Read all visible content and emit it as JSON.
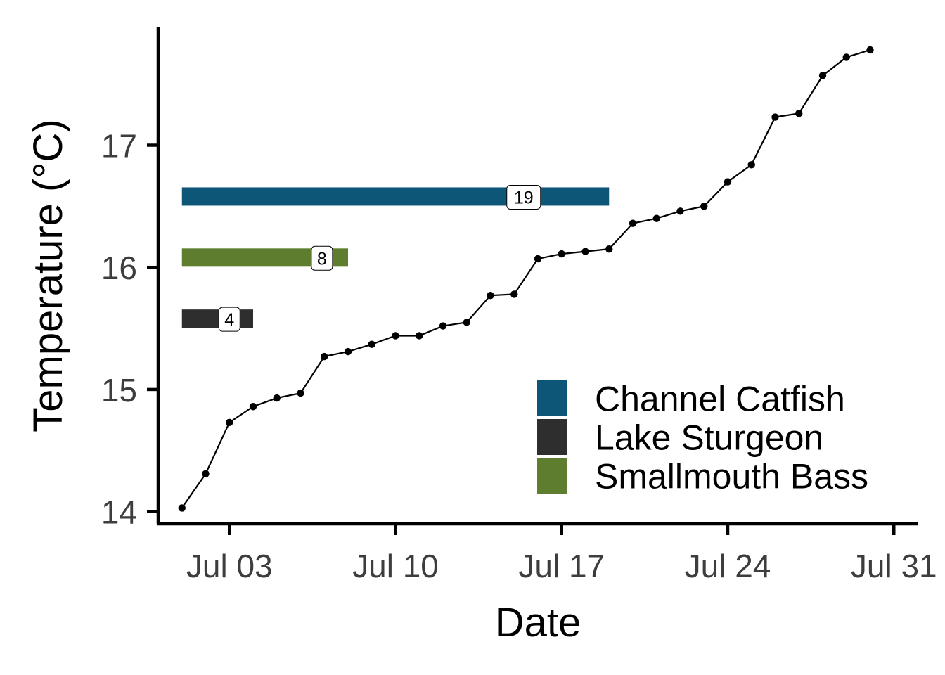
{
  "chart_data": {
    "type": "line",
    "xlabel": "Date",
    "ylabel": "Temperature (°C)",
    "x_axis": {
      "type": "date",
      "range": [
        "2023-06-30",
        "2023-08-01"
      ],
      "ticks": [
        {
          "date": "2023-07-03",
          "label": "Jul 03"
        },
        {
          "date": "2023-07-10",
          "label": "Jul 10"
        },
        {
          "date": "2023-07-17",
          "label": "Jul 17"
        },
        {
          "date": "2023-07-24",
          "label": "Jul 24"
        },
        {
          "date": "2023-07-31",
          "label": "Jul 31"
        }
      ]
    },
    "y_axis": {
      "range": [
        13.9,
        17.97
      ],
      "ticks": [
        14,
        15,
        16,
        17
      ]
    },
    "grid": false,
    "legend_position": "bottom-right",
    "series": [
      {
        "points": [
          {
            "x": "2023-07-01",
            "y": 14.03
          },
          {
            "x": "2023-07-02",
            "y": 14.31
          },
          {
            "x": "2023-07-03",
            "y": 14.73
          },
          {
            "x": "2023-07-04",
            "y": 14.86
          },
          {
            "x": "2023-07-05",
            "y": 14.93
          },
          {
            "x": "2023-07-06",
            "y": 14.97
          },
          {
            "x": "2023-07-07",
            "y": 15.27
          },
          {
            "x": "2023-07-08",
            "y": 15.31
          },
          {
            "x": "2023-07-09",
            "y": 15.37
          },
          {
            "x": "2023-07-10",
            "y": 15.44
          },
          {
            "x": "2023-07-11",
            "y": 15.44
          },
          {
            "x": "2023-07-12",
            "y": 15.52
          },
          {
            "x": "2023-07-13",
            "y": 15.55
          },
          {
            "x": "2023-07-14",
            "y": 15.77
          },
          {
            "x": "2023-07-15",
            "y": 15.78
          },
          {
            "x": "2023-07-16",
            "y": 16.07
          },
          {
            "x": "2023-07-17",
            "y": 16.11
          },
          {
            "x": "2023-07-18",
            "y": 16.13
          },
          {
            "x": "2023-07-19",
            "y": 16.15
          },
          {
            "x": "2023-07-20",
            "y": 16.36
          },
          {
            "x": "2023-07-21",
            "y": 16.4
          },
          {
            "x": "2023-07-22",
            "y": 16.46
          },
          {
            "x": "2023-07-23",
            "y": 16.5
          },
          {
            "x": "2023-07-24",
            "y": 16.7
          },
          {
            "x": "2023-07-25",
            "y": 16.84
          },
          {
            "x": "2023-07-26",
            "y": 17.23
          },
          {
            "x": "2023-07-27",
            "y": 17.26
          },
          {
            "x": "2023-07-28",
            "y": 17.57
          },
          {
            "x": "2023-07-29",
            "y": 17.72
          },
          {
            "x": "2023-07-30",
            "y": 17.78
          }
        ]
      }
    ],
    "bars": [
      {
        "name": "Channel Catfish",
        "start": "2023-07-01",
        "end": "2023-07-19",
        "y": 16.58,
        "label": "19",
        "label_x": "2023-07-15.4",
        "color": "#0d5677"
      },
      {
        "name": "Smallmouth Bass",
        "start": "2023-07-01",
        "end": "2023-07-08",
        "y": 16.08,
        "label": "8",
        "label_x": "2023-07-06.9",
        "color": "#5f7d2e"
      },
      {
        "name": "Lake Sturgeon",
        "start": "2023-07-01",
        "end": "2023-07-04",
        "y": 15.58,
        "label": "4",
        "label_x": "2023-07-03",
        "color": "#2e2e2e"
      }
    ],
    "legend": [
      {
        "name": "Channel Catfish",
        "color": "#0d5677"
      },
      {
        "name": "Lake Sturgeon",
        "color": "#2e2e2e"
      },
      {
        "name": "Smallmouth Bass",
        "color": "#5f7d2e"
      }
    ]
  }
}
